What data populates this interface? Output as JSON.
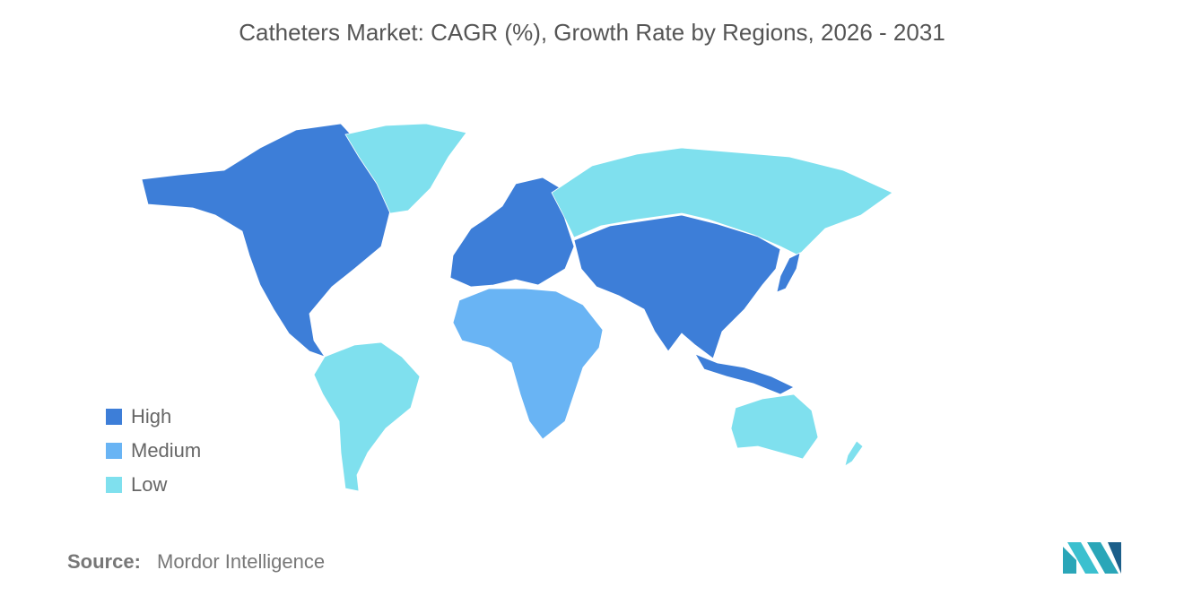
{
  "title": "Catheters Market: CAGR (%), Growth Rate by Regions, 2026 - 2031",
  "legend": [
    {
      "name": "High",
      "color": "#3d7ed8"
    },
    {
      "name": "Medium",
      "color": "#69b4f4"
    },
    {
      "name": "Low",
      "color": "#7fe0ee"
    }
  ],
  "source": {
    "label": "Source:",
    "text": "Mordor Intelligence"
  }
}
